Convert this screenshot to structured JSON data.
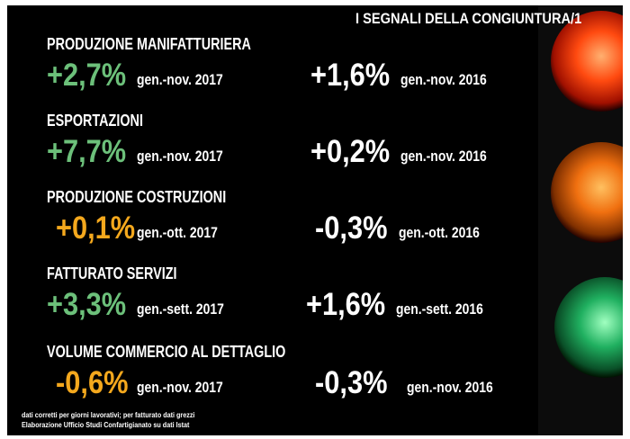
{
  "title": "I SEGNALI DELLA CONGIUNTURA/1",
  "items": [
    {
      "label": "PRODUZIONE MANIFATTURIERA",
      "current": {
        "value": "+2,7%",
        "period": "gen.-nov. 2017",
        "color": "#6cc07a"
      },
      "previous": {
        "value": "+1,6%",
        "period": "gen.-nov. 2016"
      }
    },
    {
      "label": "ESPORTAZIONI",
      "current": {
        "value": "+7,7%",
        "period": "gen.-nov. 2017",
        "color": "#6cc07a"
      },
      "previous": {
        "value": "+0,2%",
        "period": "gen.-nov. 2016"
      }
    },
    {
      "label": "PRODUZIONE COSTRUZIONI",
      "current": {
        "value": "+0,1%",
        "period": "gen.-ott. 2017",
        "color": "#f4a81d"
      },
      "previous": {
        "value": "-0,3%",
        "period": "gen.-ott. 2016"
      }
    },
    {
      "label": "FATTURATO SERVIZI",
      "current": {
        "value": "+3,3%",
        "period": "gen.-sett. 2017",
        "color": "#6cc07a"
      },
      "previous": {
        "value": "+1,6%",
        "period": "gen.-sett. 2016"
      }
    },
    {
      "label": "VOLUME COMMERCIO AL DETTAGLIO",
      "current": {
        "value": "-0,6%",
        "period": "gen.-nov. 2017",
        "color": "#f4a81d"
      },
      "previous": {
        "value": "-0,3%",
        "period": "gen.-nov. 2016"
      }
    }
  ],
  "footer": [
    "dati corretti per giorni lavorativi; per fatturato dati grezzi",
    "Elaborazione Ufficio Studi Confartigianato su dati Istat"
  ]
}
